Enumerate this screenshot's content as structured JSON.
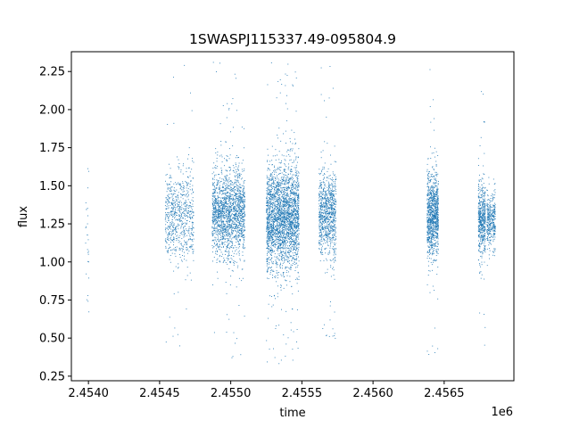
{
  "chart_data": {
    "type": "scatter",
    "title": "1SWASPJ115337.49-095804.9",
    "xlabel": "time",
    "ylabel": "flux",
    "x_offset_label": "1e6",
    "xlim": [
      2453780,
      2456890
    ],
    "ylim": [
      0.22,
      2.38
    ],
    "x_ticks": [
      2453900,
      2454400,
      2454900,
      2455400,
      2455900,
      2456400
    ],
    "x_tick_labels": [
      "2.4540",
      "2.4545",
      "2.4550",
      "2.4555",
      "2.4560",
      "2.4565"
    ],
    "y_ticks": [
      0.25,
      0.5,
      0.75,
      1.0,
      1.25,
      1.5,
      1.75,
      2.0,
      2.25
    ],
    "y_tick_labels": [
      "0.25",
      "0.50",
      "0.75",
      "1.00",
      "1.25",
      "1.50",
      "1.75",
      "2.00",
      "2.25"
    ],
    "grid": false,
    "marker_color": "#1f77b4",
    "series": [
      {
        "clusters": [
          {
            "x_start": 2453880,
            "x_end": 2453905,
            "center": 1.28,
            "sd": 0.3,
            "ymin": 0.42,
            "ymax": 1.65,
            "count": 30
          },
          {
            "x_start": 2454440,
            "x_end": 2454640,
            "center": 1.3,
            "sd": 0.16,
            "ymin": 0.4,
            "ymax": 2.31,
            "count": 700
          },
          {
            "x_start": 2454770,
            "x_end": 2455000,
            "center": 1.32,
            "sd": 0.14,
            "ymin": 0.37,
            "ymax": 2.32,
            "count": 1800
          },
          {
            "x_start": 2455150,
            "x_end": 2455380,
            "center": 1.3,
            "sd": 0.17,
            "ymin": 0.33,
            "ymax": 2.32,
            "count": 2600
          },
          {
            "x_start": 2455520,
            "x_end": 2455640,
            "center": 1.32,
            "sd": 0.14,
            "ymin": 0.45,
            "ymax": 2.34,
            "count": 900
          },
          {
            "x_start": 2456280,
            "x_end": 2456360,
            "center": 1.3,
            "sd": 0.13,
            "ymin": 0.37,
            "ymax": 2.3,
            "count": 1000
          },
          {
            "x_start": 2456640,
            "x_end": 2456690,
            "center": 1.28,
            "sd": 0.12,
            "ymin": 0.38,
            "ymax": 2.27,
            "count": 500
          },
          {
            "x_start": 2456700,
            "x_end": 2456760,
            "center": 1.28,
            "sd": 0.08,
            "ymin": 0.9,
            "ymax": 1.62,
            "count": 350
          }
        ]
      }
    ]
  }
}
